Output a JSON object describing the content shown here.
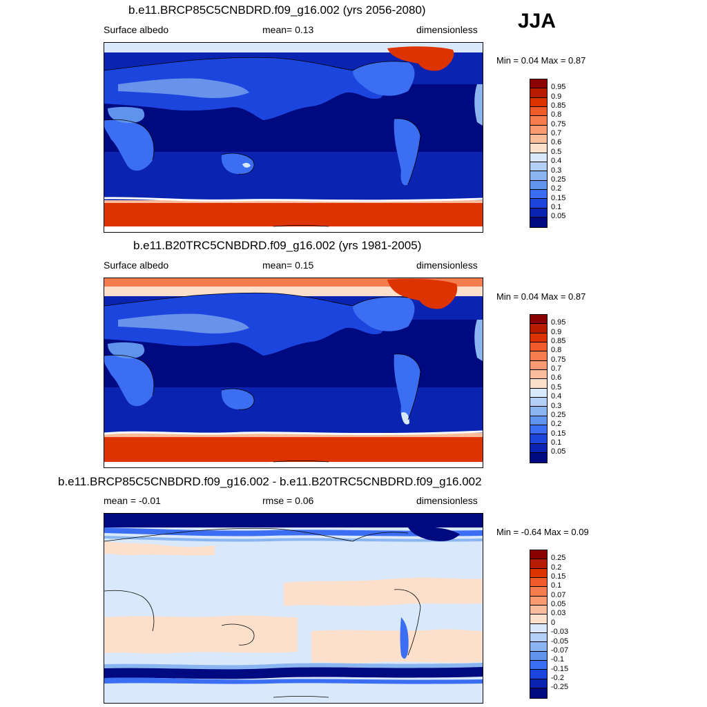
{
  "season": "JJA",
  "panels": [
    {
      "title": "b.e11.BRCP85C5CNBDRD.f09_g16.002 (yrs 2056-2080)",
      "left_label": "Surface albedo",
      "center_label": "mean=   0.13",
      "right_label": "dimensionless",
      "minmax": "Min =   0.04 Max =   0.87",
      "colorbar": "abs"
    },
    {
      "title": "b.e11.B20TRC5CNBDRD.f09_g16.002 (yrs 1981-2005)",
      "left_label": "Surface albedo",
      "center_label": "mean=   0.15",
      "right_label": "dimensionless",
      "minmax": "Min =   0.04 Max =   0.87",
      "colorbar": "abs"
    },
    {
      "title": "b.e11.BRCP85C5CNBDRD.f09_g16.002 - b.e11.B20TRC5CNBDRD.f09_g16.002",
      "left_label": "mean =  -0.01",
      "center_label": "rmse =   0.06",
      "right_label": "dimensionless",
      "minmax": "Min =  -0.64 Max =   0.09",
      "colorbar": "diff"
    }
  ],
  "colorbars": {
    "abs": {
      "labels": [
        "0.95",
        "0.9",
        "0.85",
        "0.8",
        "0.75",
        "0.7",
        "0.6",
        "0.5",
        "0.4",
        "0.3",
        "0.25",
        "0.2",
        "0.15",
        "0.1",
        "0.05"
      ],
      "colors": [
        "#8b0000",
        "#b81c00",
        "#dd3300",
        "#ef5a2a",
        "#f57c4c",
        "#f99a72",
        "#fbbc9c",
        "#fde0cc",
        "#d9e9fb",
        "#b4d0f7",
        "#8ab5f1",
        "#5f93ec",
        "#3b6ef2",
        "#1c45dd",
        "#0a23b0",
        "#000a80"
      ]
    },
    "diff": {
      "labels": [
        "0.25",
        "0.2",
        "0.15",
        "0.1",
        "0.07",
        "0.05",
        "0.03",
        "0",
        "-0.03",
        "-0.05",
        "-0.07",
        "-0.1",
        "-0.15",
        "-0.2",
        "-0.25"
      ],
      "colors": [
        "#8b0000",
        "#b81c00",
        "#dd3300",
        "#ef5a2a",
        "#f57c4c",
        "#f99a72",
        "#fbbc9c",
        "#fde0cc",
        "#d9e9fb",
        "#b4d0f7",
        "#8ab5f1",
        "#5f93ec",
        "#3b6ef2",
        "#1c45dd",
        "#0a23b0",
        "#000a80"
      ]
    }
  }
}
